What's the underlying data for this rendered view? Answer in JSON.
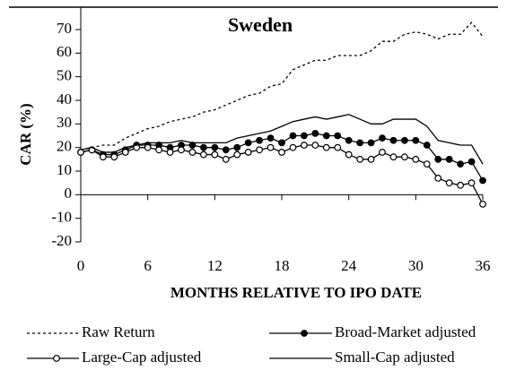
{
  "chart_data": {
    "type": "line",
    "title": "Sweden",
    "x_label": "MONTHS RELATIVE TO IPO DATE",
    "y_label": "CAR (%)",
    "x": [
      0,
      1,
      2,
      3,
      4,
      5,
      6,
      7,
      8,
      9,
      10,
      11,
      12,
      13,
      14,
      15,
      16,
      17,
      18,
      19,
      20,
      21,
      22,
      23,
      24,
      25,
      26,
      27,
      28,
      29,
      30,
      31,
      32,
      33,
      34,
      35,
      36
    ],
    "xlim": [
      0,
      36
    ],
    "xticks": [
      0,
      6,
      12,
      18,
      24,
      30,
      36
    ],
    "ylim": [
      -20,
      70
    ],
    "yticks": [
      -20,
      -10,
      0,
      10,
      20,
      30,
      40,
      50,
      60,
      70
    ],
    "legend": "bottom",
    "series": [
      {
        "name": "Raw Return",
        "color": "#000000",
        "line_style": "dotted",
        "marker": "none",
        "values": [
          19,
          20,
          21,
          21,
          24,
          26,
          28,
          29,
          31,
          32,
          33,
          35,
          36,
          38,
          40,
          42,
          43,
          46,
          47,
          53,
          55,
          57,
          57,
          59,
          59,
          59,
          61,
          65,
          65,
          68,
          69,
          68,
          66,
          68,
          68,
          73,
          67
        ]
      },
      {
        "name": "Broad-Market adjusted",
        "color": "#000000",
        "line_style": "solid",
        "marker": "filled",
        "values": [
          18,
          19,
          17,
          17,
          19,
          21,
          21,
          21,
          20,
          21,
          21,
          20,
          20,
          19,
          20,
          22,
          23,
          24,
          22,
          25,
          25,
          26,
          25,
          25,
          23,
          22,
          22,
          24,
          23,
          23,
          23,
          21,
          15,
          15,
          13,
          14,
          6
        ]
      },
      {
        "name": "Large-Cap adjusted",
        "color": "#000000",
        "line_style": "solid",
        "marker": "open",
        "values": [
          18,
          19,
          16,
          16,
          18,
          20,
          20,
          19,
          18,
          19,
          18,
          17,
          17,
          15,
          17,
          18,
          19,
          20,
          18,
          20,
          21,
          21,
          20,
          20,
          17,
          15,
          15,
          18,
          16,
          16,
          15,
          13,
          7,
          5,
          4,
          5,
          -4
        ]
      },
      {
        "name": "Small-Cap adjusted",
        "color": "#000000",
        "line_style": "solid",
        "marker": "none",
        "values": [
          19,
          20,
          18,
          18,
          20,
          21,
          22,
          22,
          22,
          23,
          22,
          22,
          22,
          22,
          24,
          25,
          26,
          27,
          29,
          31,
          32,
          33,
          32,
          33,
          34,
          32,
          30,
          30,
          32,
          32,
          32,
          29,
          23,
          22,
          21,
          21,
          13
        ]
      }
    ]
  }
}
